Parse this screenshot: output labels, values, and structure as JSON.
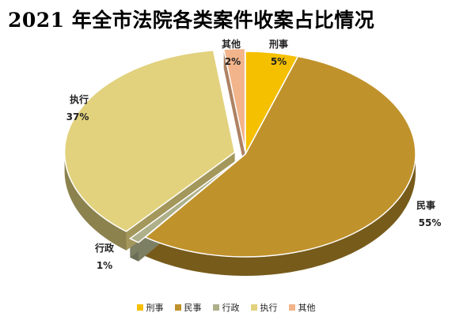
{
  "chart_data": {
    "type": "pie",
    "title": "2021 年全市法院各类案件收案占比情况",
    "slices": [
      {
        "name": "刑事",
        "value": 5,
        "label": "5%",
        "color": "#F5C000"
      },
      {
        "name": "民事",
        "value": 55,
        "label": "55%",
        "color": "#C0922C"
      },
      {
        "name": "行政",
        "value": 1,
        "label": "1%",
        "color": "#AEB08A"
      },
      {
        "name": "执行",
        "value": 37,
        "label": "37%",
        "color": "#E2D27E"
      },
      {
        "name": "其他",
        "value": 2,
        "label": "2%",
        "color": "#F2B48A"
      }
    ],
    "legend_position": "bottom"
  }
}
